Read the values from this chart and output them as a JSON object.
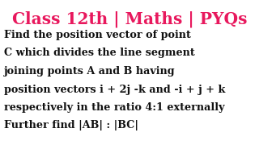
{
  "title": "Class 12th | Maths | PYQs",
  "title_color": "#e8185d",
  "body_lines": [
    "Find the position vector of point",
    "C which divides the line segment",
    "joining points A and B having",
    "position vectors i + 2j -k and -i + j + k",
    "respectively in the ratio 4:1 externally",
    "Further find |AB| : |BC|"
  ],
  "bg_color": "#ffffff",
  "body_color": "#111111",
  "title_fontsize": 14.5,
  "body_fontsize": 9.2
}
